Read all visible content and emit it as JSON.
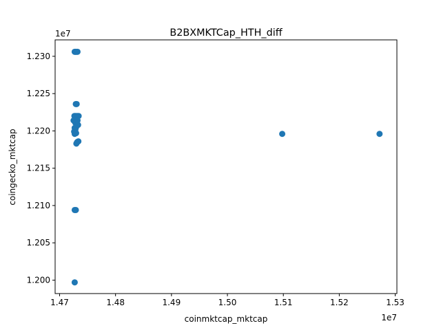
{
  "chart_data": {
    "type": "scatter",
    "title": "B2BXMKTCap_HTH_diff",
    "xlabel": "coinmktcap_mktcap",
    "ylabel": "coingecko_mktcap",
    "x_offset_label": "1e7",
    "y_offset_label": "1e7",
    "xlim": [
      14692000,
      15303000
    ],
    "ylim": [
      11982000,
      12322000
    ],
    "x_ticks": [
      14700000,
      14800000,
      14900000,
      15000000,
      15100000,
      15200000,
      15300000
    ],
    "x_tick_labels": [
      "1.47",
      "1.48",
      "1.49",
      "1.50",
      "1.51",
      "1.52",
      "1.53"
    ],
    "y_ticks": [
      12000000,
      12050000,
      12100000,
      12150000,
      12200000,
      12250000,
      12300000
    ],
    "y_tick_labels": [
      "1.200",
      "1.205",
      "1.210",
      "1.215",
      "1.220",
      "1.225",
      "1.230"
    ],
    "grid": false,
    "marker_color": "#1f77b4",
    "series": [
      {
        "name": "",
        "points": [
          [
            14727000,
            12306000
          ],
          [
            14728500,
            12306000
          ],
          [
            14730000,
            12306000
          ],
          [
            14732000,
            12306000
          ],
          [
            14729000,
            12236000
          ],
          [
            14730500,
            12236000
          ],
          [
            14726500,
            12220000
          ],
          [
            14728000,
            12220000
          ],
          [
            14730000,
            12220000
          ],
          [
            14732000,
            12220000
          ],
          [
            14734000,
            12220000
          ],
          [
            14725000,
            12214000
          ],
          [
            14727000,
            12214000
          ],
          [
            14730000,
            12214000
          ],
          [
            14732000,
            12214000
          ],
          [
            14728000,
            12211000
          ],
          [
            14731000,
            12208000
          ],
          [
            14733000,
            12208000
          ],
          [
            14727000,
            12204000
          ],
          [
            14729000,
            12204000
          ],
          [
            14726000,
            12199000
          ],
          [
            14728000,
            12201000
          ],
          [
            14727000,
            12196000
          ],
          [
            14729500,
            12197000
          ],
          [
            14731500,
            12185000
          ],
          [
            14733500,
            12186000
          ],
          [
            14730000,
            12183000
          ],
          [
            14727000,
            12094000
          ],
          [
            14729000,
            12094000
          ],
          [
            14727000,
            11997000
          ],
          [
            15098000,
            12196000
          ],
          [
            15272000,
            12196000
          ]
        ]
      }
    ]
  }
}
